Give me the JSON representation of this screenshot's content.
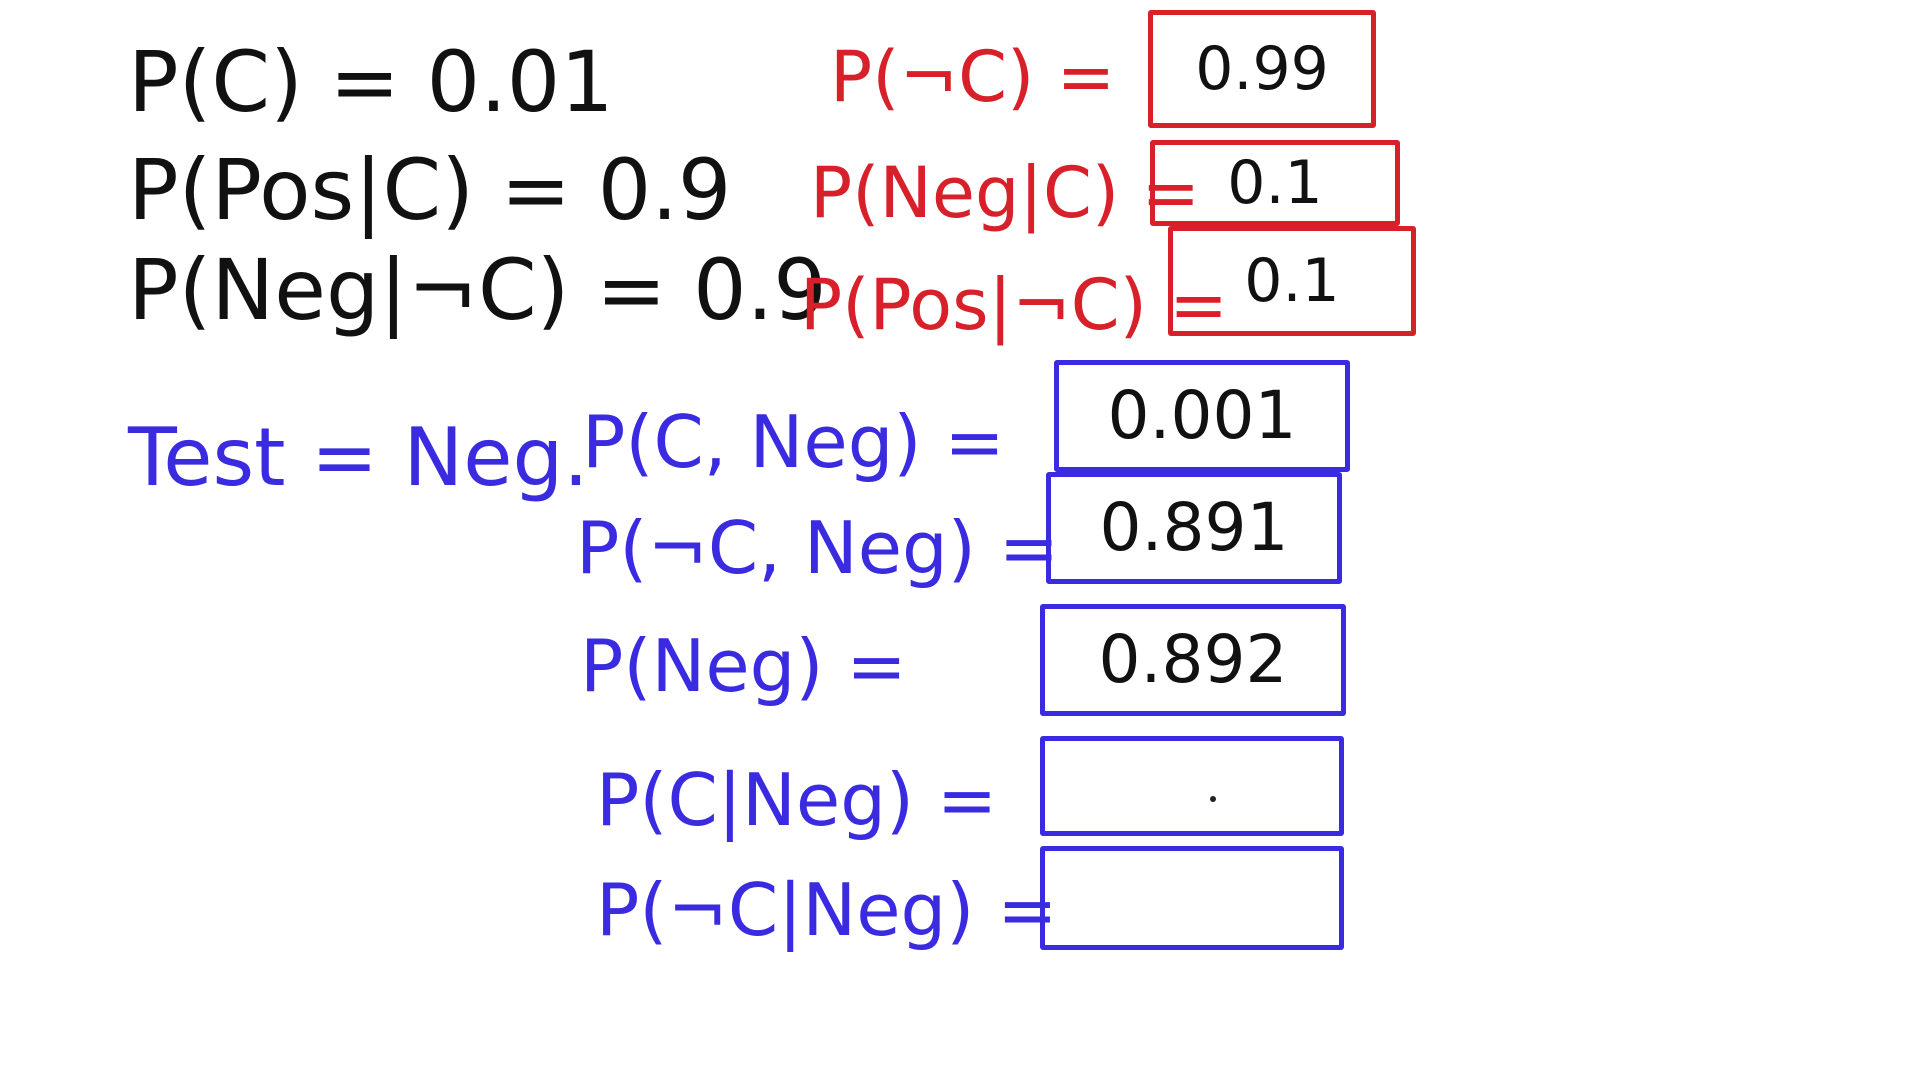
{
  "given": {
    "p_c": "P(C) = 0.01",
    "p_pos_given_c": "P(Pos|C) = 0.9",
    "p_neg_given_not_c": "P(Neg|¬C) = 0.9"
  },
  "complements": {
    "p_not_c_label": "P(¬C) =",
    "p_not_c_value": "0.99",
    "p_neg_given_c_label": "P(Neg|C) =",
    "p_neg_given_c_value": "0.1",
    "p_pos_given_not_c_label": "P(Pos|¬C) =",
    "p_pos_given_not_c_value": "0.1"
  },
  "test": {
    "label": "Test = Neg."
  },
  "computations": [
    {
      "label": "P(C, Neg) =",
      "value": "0.001"
    },
    {
      "label": "P(¬C, Neg) =",
      "value": "0.891"
    },
    {
      "label": "P(Neg) =",
      "value": "0.892"
    },
    {
      "label": "P(C|Neg) =",
      "value": ""
    },
    {
      "label": "P(¬C|Neg) =",
      "value": ""
    }
  ],
  "colors": {
    "given": "#111111",
    "complements": "#d8202a",
    "computations": "#3a2be0"
  }
}
